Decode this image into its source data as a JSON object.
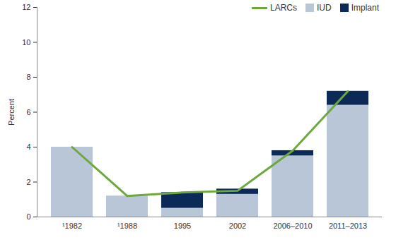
{
  "chart_data": {
    "type": "bar",
    "stacked": true,
    "categories": [
      "¹1982",
      "¹1988",
      "1995",
      "2002",
      "2006–2010",
      "2011–2013"
    ],
    "series": [
      {
        "name": "LARCs",
        "type": "line",
        "color": "#6ea83c",
        "values": [
          4.0,
          1.2,
          1.4,
          1.5,
          3.8,
          7.2
        ]
      },
      {
        "name": "IUD",
        "type": "bar",
        "color": "#b8c6d8",
        "values": [
          4.0,
          1.2,
          0.5,
          1.3,
          3.5,
          6.4
        ]
      },
      {
        "name": "Implant",
        "type": "bar",
        "color": "#0b2a57",
        "values": [
          null,
          null,
          0.9,
          0.3,
          0.3,
          0.8
        ]
      }
    ],
    "ylabel": "Percent",
    "ylim": [
      0,
      12
    ],
    "yticks": [
      0,
      2,
      4,
      6,
      8,
      10,
      12
    ],
    "grid": false,
    "legend": "top-right"
  }
}
